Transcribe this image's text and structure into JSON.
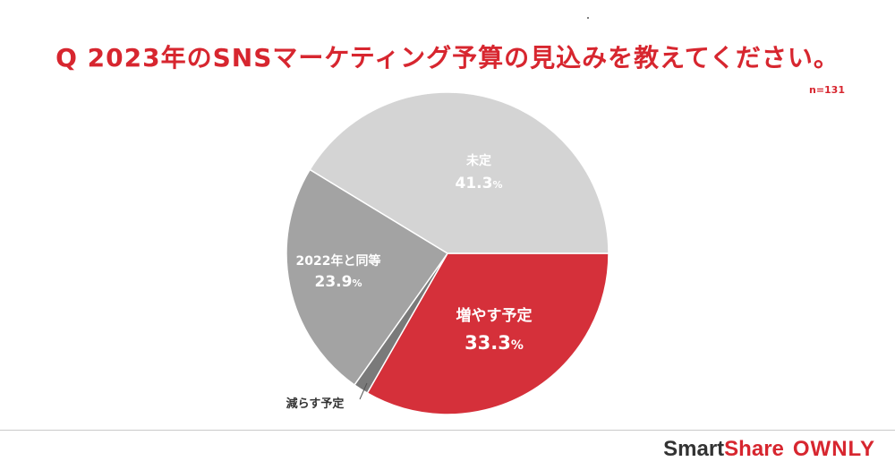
{
  "header": {
    "title": "Q 2023年のSNSマーケティング予算の見込みを教えてください。",
    "sample": "n=131"
  },
  "chart_data": {
    "type": "pie",
    "title": "Q 2023年のSNSマーケティング予算の見込みを教えてください。",
    "start_angle_deg": 90,
    "direction": "clockwise",
    "slices": [
      {
        "label": "増やす予定",
        "value": 33.3,
        "display": "33.3%",
        "color": "#d5303a",
        "label_color": "#ffffff"
      },
      {
        "label": "減らす予定",
        "value": 1.5,
        "display": "",
        "color": "#7a7a7a",
        "label_color": "#333333"
      },
      {
        "label": "2022年と同等",
        "value": 23.9,
        "display": "23.9%",
        "color": "#a3a3a3",
        "label_color": "#ffffff"
      },
      {
        "label": "未定",
        "value": 41.3,
        "display": "41.3%",
        "color": "#d4d4d4",
        "label_color": "#ffffff"
      }
    ]
  },
  "brand": {
    "smart": "Smart",
    "share": "Share",
    "ownly": "OWNLY"
  }
}
